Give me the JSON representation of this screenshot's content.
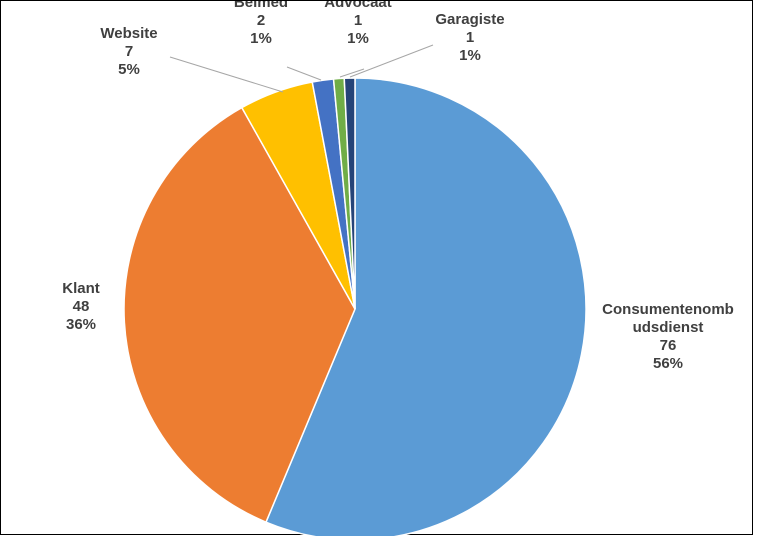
{
  "chart_data": {
    "type": "pie",
    "slices": [
      {
        "label_lines": [
          "Consumentenomb",
          "udsdienst"
        ],
        "value": 76,
        "percent": "56%",
        "color": "#5b9bd5"
      },
      {
        "label_lines": [
          "Klant"
        ],
        "value": 48,
        "percent": "36%",
        "color": "#ed7d31"
      },
      {
        "label_lines": [
          "Website"
        ],
        "value": 7,
        "percent": "5%",
        "color": "#ffc000"
      },
      {
        "label_lines": [
          "Belmed"
        ],
        "value": 2,
        "percent": "1%",
        "color": "#4472c4"
      },
      {
        "label_lines": [
          "Advocaat"
        ],
        "value": 1,
        "percent": "1%",
        "color": "#70ad47"
      },
      {
        "label_lines": [
          "Garagiste"
        ],
        "value": 1,
        "percent": "1%",
        "color": "#264478"
      }
    ],
    "start_angle_deg": 0,
    "direction": "clockwise",
    "legend": "none",
    "data_labels": "category-value-percent"
  }
}
